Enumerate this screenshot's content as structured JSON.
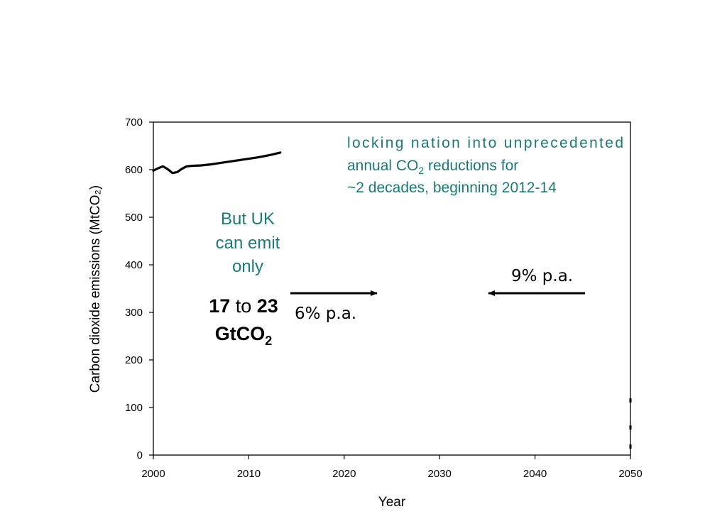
{
  "chart_data": {
    "type": "line",
    "xlabel": "Year",
    "ylabel": "Carbon dioxide emissions (MtCO₂)",
    "xlim": [
      2000,
      2050
    ],
    "ylim": [
      0,
      700
    ],
    "x_ticks": [
      "2000",
      "2010",
      "2020",
      "2030",
      "2040",
      "2050"
    ],
    "y_ticks": [
      "0",
      "100",
      "200",
      "300",
      "400",
      "500",
      "600",
      "700"
    ],
    "grid": false,
    "series": [
      {
        "x": [
          2000,
          2000.5,
          2001,
          2001.5,
          2002,
          2002.5,
          2003,
          2003.5,
          2004,
          2005,
          2006,
          2007,
          2008,
          2009,
          2010,
          2011,
          2012,
          2012.5,
          2013.3
        ],
        "y": [
          598,
          603,
          607,
          601,
          593,
          595,
          602,
          607,
          608,
          609,
          611,
          614,
          617,
          620,
          623,
          626,
          630,
          632,
          636
        ]
      }
    ],
    "right_edge_ticks": [
      115,
      58,
      18
    ],
    "annotations": {
      "note_lines": [
        {
          "before": "locking nation into unprecedented",
          "sub": "",
          "after": ""
        },
        {
          "before": "annual CO",
          "sub": "2",
          "after": " reductions for"
        },
        {
          "before": "~2 decades, beginning 2012-14",
          "sub": "",
          "after": ""
        }
      ],
      "budget_lines": [
        "But UK",
        "can emit",
        "only"
      ],
      "range_low": "17",
      "range_word": " to ",
      "range_high": "23",
      "unit_main": "GtCO",
      "unit_sub": "2",
      "rate_left": "6% p.a.",
      "rate_right": "9% p.a."
    },
    "colors": {
      "annotation_teal": "#1a7a78",
      "line": "#000000",
      "axis": "#000000"
    }
  }
}
